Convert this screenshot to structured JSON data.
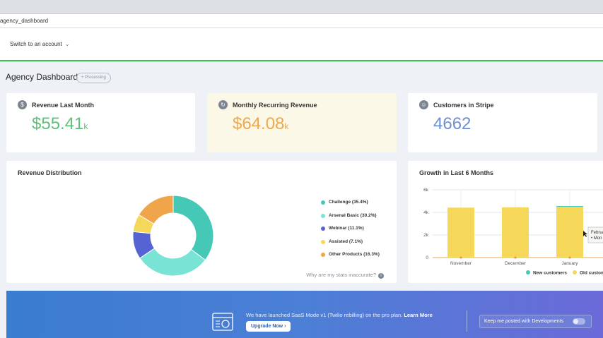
{
  "browser": {
    "url_fragment": "agency_dashboard"
  },
  "account": {
    "switch_label": "Switch to an account",
    "chevron_icon": "chevron-down-icon"
  },
  "header": {
    "title": "Agency Dashboard",
    "status_badge": "+ Processing"
  },
  "kpis": [
    {
      "label": "Revenue Last Month",
      "value": "$55.41",
      "suffix": "k",
      "icon": "dollar-icon",
      "color": "#5cc179"
    },
    {
      "label": "Monthly Recurring Revenue",
      "value": "$64.08",
      "suffix": "k",
      "icon": "refresh-icon",
      "color": "#efa84a"
    },
    {
      "label": "Customers in Stripe",
      "value": "4662",
      "suffix": "",
      "icon": "users-icon",
      "color": "#6c8fd6"
    }
  ],
  "revenue_distribution": {
    "title": "Revenue Distribution",
    "inaccurate_link": "Why are my stats inaccurate?",
    "legend": [
      {
        "label": "Challenge (35.4%)",
        "color": "#45c8b6"
      },
      {
        "label": "Arsenal Basic (30.2%)",
        "color": "#79e3d5"
      },
      {
        "label": "Webinar (11.1%)",
        "color": "#5663d2"
      },
      {
        "label": "Assisted (7.1%)",
        "color": "#f5d85a"
      },
      {
        "label": "Other Products (16.3%)",
        "color": "#f0a54a"
      }
    ]
  },
  "growth": {
    "title": "Growth in Last 6 Months",
    "y_ticks": [
      "6k",
      "4k",
      "2k",
      "0"
    ],
    "x_ticks": [
      "November",
      "December",
      "January"
    ],
    "legend": [
      {
        "label": "New customers",
        "color": "#45c8b6"
      },
      {
        "label": "Old custom",
        "color": "#f5d85a"
      }
    ],
    "tooltip_lines": [
      "Februa",
      "• Mon"
    ]
  },
  "chart_data": [
    {
      "type": "pie",
      "title": "Revenue Distribution",
      "categories": [
        "Challenge",
        "Arsenal Basic",
        "Webinar",
        "Assisted",
        "Other Products"
      ],
      "values": [
        35.4,
        30.2,
        11.1,
        7.1,
        16.3
      ]
    },
    {
      "type": "bar",
      "title": "Growth in Last 6 Months",
      "categories": [
        "November",
        "December",
        "January"
      ],
      "series": [
        {
          "name": "New customers",
          "values": [
            0,
            0,
            60
          ]
        },
        {
          "name": "Old custom",
          "values": [
            4420,
            4450,
            4500
          ]
        }
      ],
      "ylim": [
        0,
        6000
      ]
    }
  ],
  "banner": {
    "message": "We have launched SaaS Mode v1 (Twilio rebilling) on the pro plan.",
    "learn_more": "Learn More",
    "upgrade_label": "Upgrade Now",
    "keep_posted": "Keep me posted with Developments"
  }
}
